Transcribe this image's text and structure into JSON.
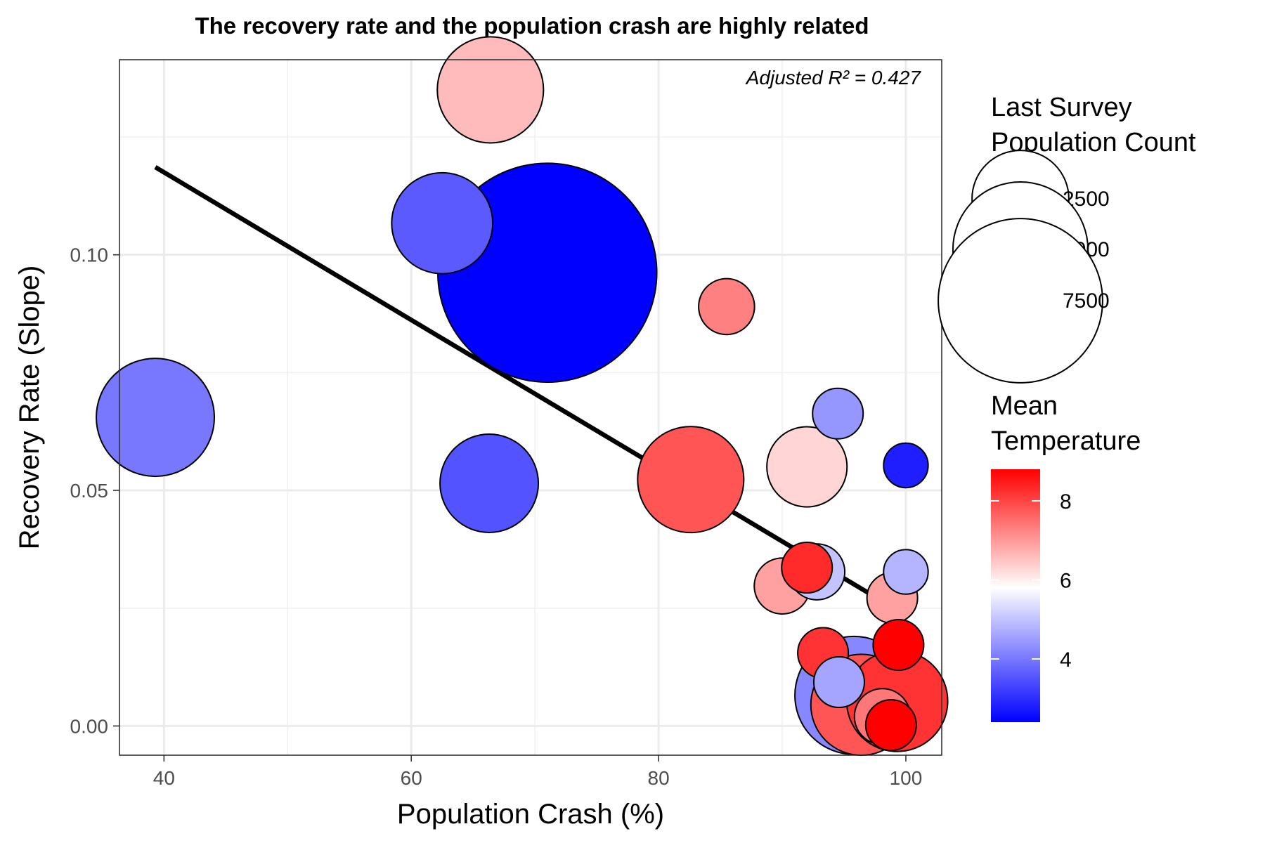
{
  "chart_data": {
    "type": "scatter",
    "title": "The recovery rate and the population crash are highly related",
    "xlabel": "Population Crash (%)",
    "ylabel": "Recovery Rate (Slope)",
    "annotation": "Adjusted R² = 0.427",
    "xlim": [
      36.4,
      102.9
    ],
    "ylim": [
      -0.0062,
      0.1414
    ],
    "x_ticks": [
      40,
      60,
      80,
      100
    ],
    "x_tick_labels": [
      "40",
      "60",
      "80",
      "100"
    ],
    "x_minor_ticks": [
      50,
      70,
      90
    ],
    "y_ticks": [
      0.0,
      0.05,
      0.1
    ],
    "y_tick_labels": [
      "0.00",
      "0.05",
      "0.10"
    ],
    "y_minor_ticks": [
      0.025,
      0.075,
      0.125
    ],
    "grid": true,
    "regression_line": {
      "x": [
        39.3,
        100.0
      ],
      "y": [
        0.1186,
        0.0235
      ]
    },
    "size_legend": {
      "title": [
        "Last Survey",
        "Population Count"
      ],
      "entries": [
        {
          "label": "2500",
          "value": 2500
        },
        {
          "label": "5000",
          "value": 5000
        },
        {
          "label": "7500",
          "value": 7500
        }
      ]
    },
    "color_legend": {
      "title": [
        "Mean",
        "Temperature"
      ],
      "range": [
        2.4,
        8.8
      ],
      "ticks": [
        4,
        6,
        8
      ],
      "tick_labels": [
        "4",
        "6",
        "8"
      ],
      "low_color": "#0000ff",
      "mid_color": "#ffffff",
      "high_color": "#ff0000",
      "midpoint": 5.8
    },
    "points": [
      {
        "x": 39.3,
        "y": 0.0655,
        "size": 2500,
        "temp": 4.0
      },
      {
        "x": 62.5,
        "y": 0.1067,
        "size": 1800,
        "temp": 3.6
      },
      {
        "x": 66.3,
        "y": 0.0515,
        "size": 1700,
        "temp": 3.5
      },
      {
        "x": 66.4,
        "y": 0.135,
        "size": 2000,
        "temp": 6.6
      },
      {
        "x": 71.0,
        "y": 0.0962,
        "size": 9000,
        "temp": 2.4
      },
      {
        "x": 82.6,
        "y": 0.0523,
        "size": 2000,
        "temp": 7.8
      },
      {
        "x": 85.5,
        "y": 0.089,
        "size": 500,
        "temp": 7.3
      },
      {
        "x": 90.0,
        "y": 0.0297,
        "size": 500,
        "temp": 6.9
      },
      {
        "x": 92.0,
        "y": 0.0336,
        "size": 400,
        "temp": 8.3
      },
      {
        "x": 92.0,
        "y": 0.055,
        "size": 1100,
        "temp": 6.3
      },
      {
        "x": 92.8,
        "y": 0.0327,
        "size": 500,
        "temp": 5.0
      },
      {
        "x": 93.3,
        "y": 0.0155,
        "size": 400,
        "temp": 8.2
      },
      {
        "x": 94.5,
        "y": 0.0663,
        "size": 400,
        "temp": 4.4
      },
      {
        "x": 94.6,
        "y": 0.0093,
        "size": 400,
        "temp": 4.6
      },
      {
        "x": 95.8,
        "y": 0.0065,
        "size": 2500,
        "temp": 4.2
      },
      {
        "x": 96.4,
        "y": 0.0045,
        "size": 1800,
        "temp": 7.8
      },
      {
        "x": 98.1,
        "y": 0.002,
        "size": 500,
        "temp": 7.4
      },
      {
        "x": 98.8,
        "y": 0.0002,
        "size": 400,
        "temp": 8.8
      },
      {
        "x": 98.9,
        "y": 0.0272,
        "size": 400,
        "temp": 6.9
      },
      {
        "x": 99.3,
        "y": 0.0053,
        "size": 1800,
        "temp": 8.2
      },
      {
        "x": 99.4,
        "y": 0.0172,
        "size": 400,
        "temp": 8.8
      },
      {
        "x": 100.0,
        "y": 0.0553,
        "size": 300,
        "temp": 2.8
      },
      {
        "x": 100.0,
        "y": 0.0327,
        "size": 300,
        "temp": 4.8
      }
    ]
  }
}
